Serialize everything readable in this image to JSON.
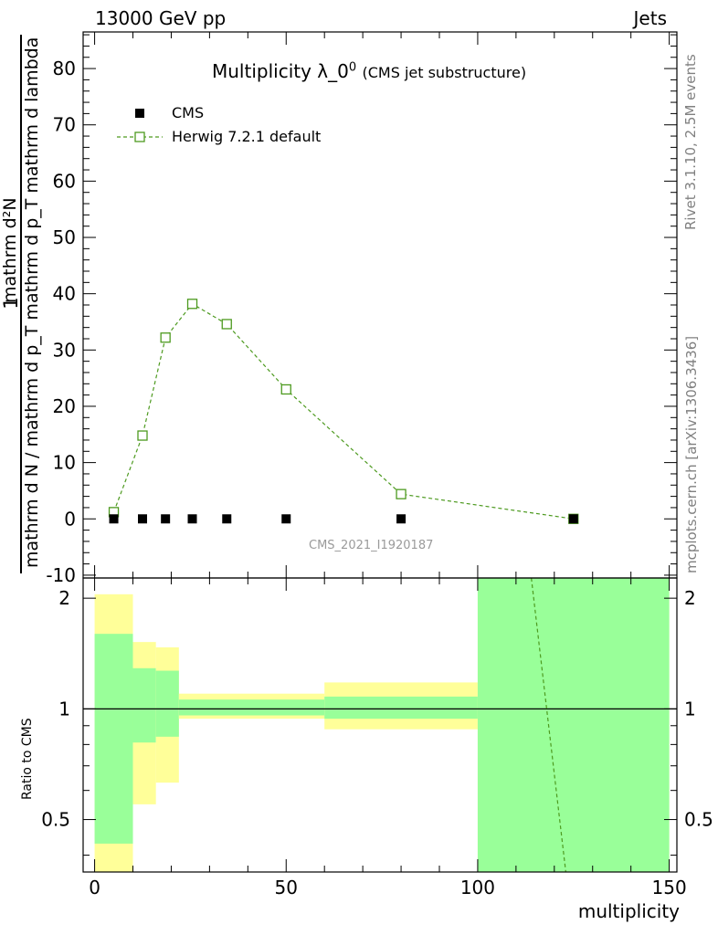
{
  "header": {
    "left": "13000 GeV pp",
    "right": "Jets"
  },
  "title": {
    "main": "Multiplicity λ_0",
    "superscript": "0",
    "sub": "(CMS jet substructure)"
  },
  "side_text": {
    "rivet": "Rivet 3.1.10,  2.5M events",
    "mcplots": "mcplots.cern.ch [arXiv:1306.3436]"
  },
  "watermark": "CMS_2021_I1920187",
  "ylabel": {
    "numerator": "mathrm d²N",
    "denominator_part1": "mathrm d N / mathrm d p_T mathrm d p_T mathrm d lambda",
    "numerator_prefix": "1"
  },
  "ratio_ylabel": "Ratio to CMS",
  "xlabel": "multiplicity",
  "legend": {
    "cms": "CMS",
    "herwig": "Herwig 7.2.1 default"
  },
  "colors": {
    "herwig": "#4d9a1f",
    "band_green": "#99ff99",
    "band_yellow": "#ffff99",
    "data": "#000000"
  },
  "chart_data": [
    {
      "type": "scatter",
      "panel": "main",
      "xlim": [
        -3,
        152
      ],
      "ylim": [
        -10.5,
        86.5
      ],
      "yticks": [
        -10,
        0,
        10,
        20,
        30,
        40,
        50,
        60,
        70,
        80
      ],
      "series": [
        {
          "name": "CMS",
          "x": [
            5,
            12.5,
            18.5,
            25.5,
            34.5,
            50,
            80,
            125
          ],
          "y": [
            0,
            0,
            0,
            0,
            0,
            0,
            0,
            0
          ]
        },
        {
          "name": "Herwig 7.2.1 default",
          "x": [
            5,
            12.5,
            18.5,
            25.5,
            34.5,
            50,
            80,
            125
          ],
          "y": [
            1.2,
            14.8,
            32.2,
            38.2,
            34.6,
            23.0,
            4.4,
            0.0
          ]
        }
      ]
    },
    {
      "type": "area",
      "panel": "ratio",
      "xlim": [
        -3,
        152
      ],
      "ylim": [
        0.36,
        2.27
      ],
      "scale": "log",
      "yticks": [
        0.5,
        1,
        2
      ],
      "xticks": [
        0,
        50,
        100,
        150
      ],
      "bins": [
        {
          "x0": 0,
          "x1": 10,
          "green": [
            0.43,
            1.6
          ],
          "yellow": [
            0.3,
            2.05
          ]
        },
        {
          "x0": 10,
          "x1": 16,
          "green": [
            0.81,
            1.29
          ],
          "yellow": [
            0.55,
            1.52
          ]
        },
        {
          "x0": 16,
          "x1": 22,
          "green": [
            0.84,
            1.27
          ],
          "yellow": [
            0.63,
            1.47
          ]
        },
        {
          "x0": 22,
          "x1": 60,
          "green": [
            0.96,
            1.06
          ],
          "yellow": [
            0.94,
            1.1
          ]
        },
        {
          "x0": 60,
          "x1": 100,
          "green": [
            0.94,
            1.08
          ],
          "yellow": [
            0.88,
            1.18
          ]
        },
        {
          "x0": 100,
          "x1": 150,
          "green": [
            0.3,
            2.4
          ],
          "yellow": [
            0.3,
            2.4
          ]
        }
      ],
      "series": [
        {
          "name": "Herwig 7.2.1 default",
          "x": [
            114,
            123
          ],
          "y": [
            2.27,
            0.36
          ]
        }
      ]
    }
  ]
}
